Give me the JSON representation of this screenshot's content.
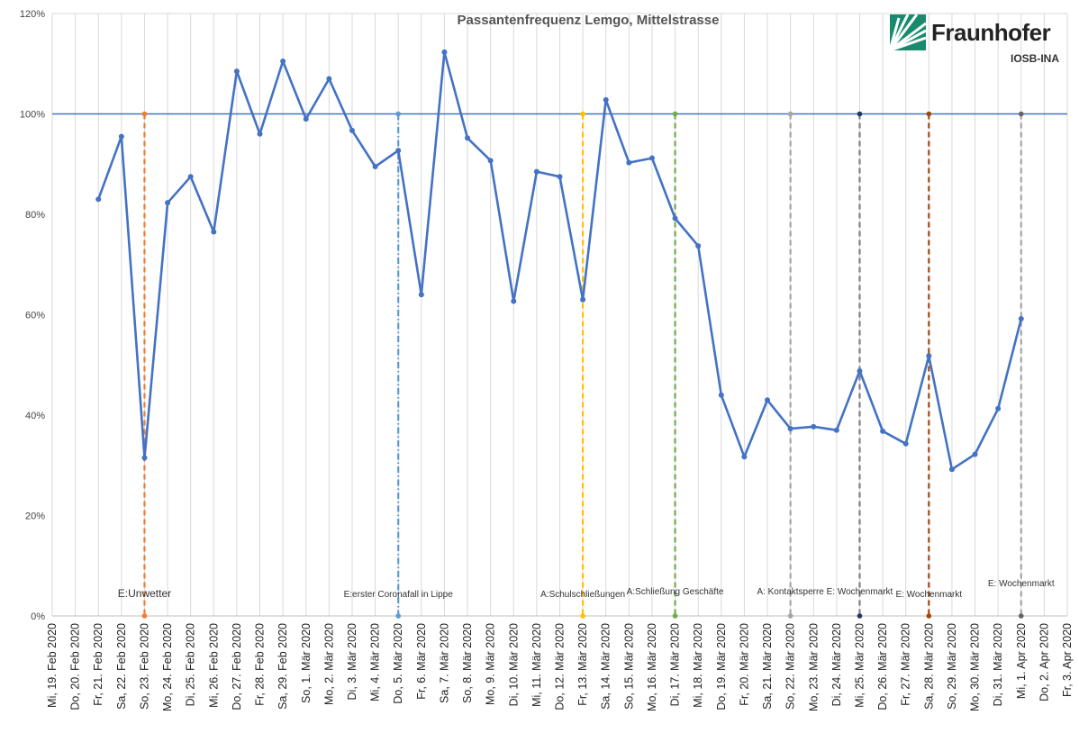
{
  "chart_data": {
    "type": "line",
    "title": "Passantenfrequenz Lemgo, Mittelstrasse",
    "categories": [
      "Mi, 19. Feb 2020",
      "Do, 20. Feb 2020",
      "Fr, 21. Feb 2020",
      "Sa, 22. Feb 2020",
      "So, 23. Feb 2020",
      "Mo, 24. Feb 2020",
      "Di, 25. Feb 2020",
      "Mi, 26. Feb 2020",
      "Do, 27. Feb 2020",
      "Fr, 28. Feb 2020",
      "Sa, 29. Feb 2020",
      "So, 1. Mär 2020",
      "Mo, 2. Mär 2020",
      "Di, 3. Mär 2020",
      "Mi, 4. Mär 2020",
      "Do, 5. Mär 2020",
      "Fr, 6. Mär 2020",
      "Sa, 7. Mär 2020",
      "So, 8. Mär 2020",
      "Mo, 9. Mär 2020",
      "Di, 10. Mär 2020",
      "Mi, 11. Mär 2020",
      "Do, 12. Mär 2020",
      "Fr, 13. Mär 2020",
      "Sa, 14. Mär 2020",
      "So, 15. Mär 2020",
      "Mo, 16. Mär 2020",
      "Di, 17. Mär 2020",
      "Mi, 18. Mär 2020",
      "Do, 19. Mär 2020",
      "Fr, 20. Mär 2020",
      "Sa, 21. Mär 2020",
      "So, 22. Mär 2020",
      "Mo, 23. Mär 2020",
      "Di, 24. Mär 2020",
      "Mi, 25. Mär 2020",
      "Do, 26. Mär 2020",
      "Fr, 27. Mär 2020",
      "Sa, 28. Mär 2020",
      "So, 29. Mär 2020",
      "Mo, 30. Mär 2020",
      "Di, 31. Mär 2020",
      "Mi, 1. Apr 2020",
      "Do, 2. Apr 2020",
      "Fr, 3. Apr 2020"
    ],
    "series": [
      {
        "values": [
          null,
          null,
          83,
          95.5,
          31.5,
          82.3,
          87.5,
          76.5,
          108.5,
          96,
          110.5,
          99,
          107,
          96.7,
          89.5,
          92.7,
          64,
          112.3,
          95.2,
          90.7,
          62.7,
          88.5,
          87.5,
          63,
          102.8,
          90.3,
          91.2,
          79.2,
          73.7,
          44,
          31.7,
          43,
          37.3,
          37.7,
          37,
          48.8,
          36.8,
          34.3,
          51.8,
          29.2,
          32.2,
          41.3,
          59.2,
          null,
          null
        ]
      }
    ],
    "reference_line": {
      "value": 100
    },
    "ylim": [
      0,
      120
    ],
    "yticks": [
      0,
      20,
      40,
      60,
      80,
      100,
      120
    ],
    "ytick_labels": [
      "0%",
      "20%",
      "40%",
      "60%",
      "80%",
      "100%",
      "120%"
    ],
    "grid": "vertical",
    "colors": {
      "line": "#4472C4",
      "reference": "#4472C4",
      "grid": "#d9d9d9"
    },
    "events": [
      {
        "date_index": 4,
        "label": "E:Unwetter",
        "color": "#ED7D31",
        "dash": "dashed",
        "label_size": "large",
        "label_row": "lower"
      },
      {
        "date_index": 15,
        "label": "E:erster Coronafall in Lippe",
        "color": "#5B9BD5",
        "dash": "dashdot",
        "label_size": "small",
        "label_row": "lower"
      },
      {
        "date_index": 23,
        "label": "A:Schulschließungen",
        "color": "#FFC000",
        "dash": "dashed",
        "label_size": "small",
        "label_row": "lower"
      },
      {
        "date_index": 27,
        "label": "A:Schließung Geschäfte",
        "color": "#70AD47",
        "dash": "dashed",
        "label_size": "small",
        "label_row": "upper"
      },
      {
        "date_index": 32,
        "label": "A: Kontaktsperre",
        "color": "#A5A5A5",
        "dash": "dashed",
        "label_size": "small",
        "label_row": "upper"
      },
      {
        "date_index": 35,
        "label": "E: Wochenmarkt",
        "color": "#7F7F7F",
        "dash": "dashed",
        "label_size": "small",
        "label_row": "upper",
        "end_color": "#203864"
      },
      {
        "date_index": 38,
        "label": "E: Wochenmarkt",
        "color": "#9E480E",
        "dash": "dashed",
        "label_size": "small",
        "label_row": "lower"
      },
      {
        "date_index": 42,
        "label": "E: Wochenmarkt",
        "color": "#A5A5A5",
        "dash": "dashed",
        "label_size": "small",
        "label_row": "top",
        "end_color": "#636363"
      }
    ]
  },
  "logo": {
    "name": "Fraunhofer",
    "subtitle": "IOSB-INA"
  }
}
